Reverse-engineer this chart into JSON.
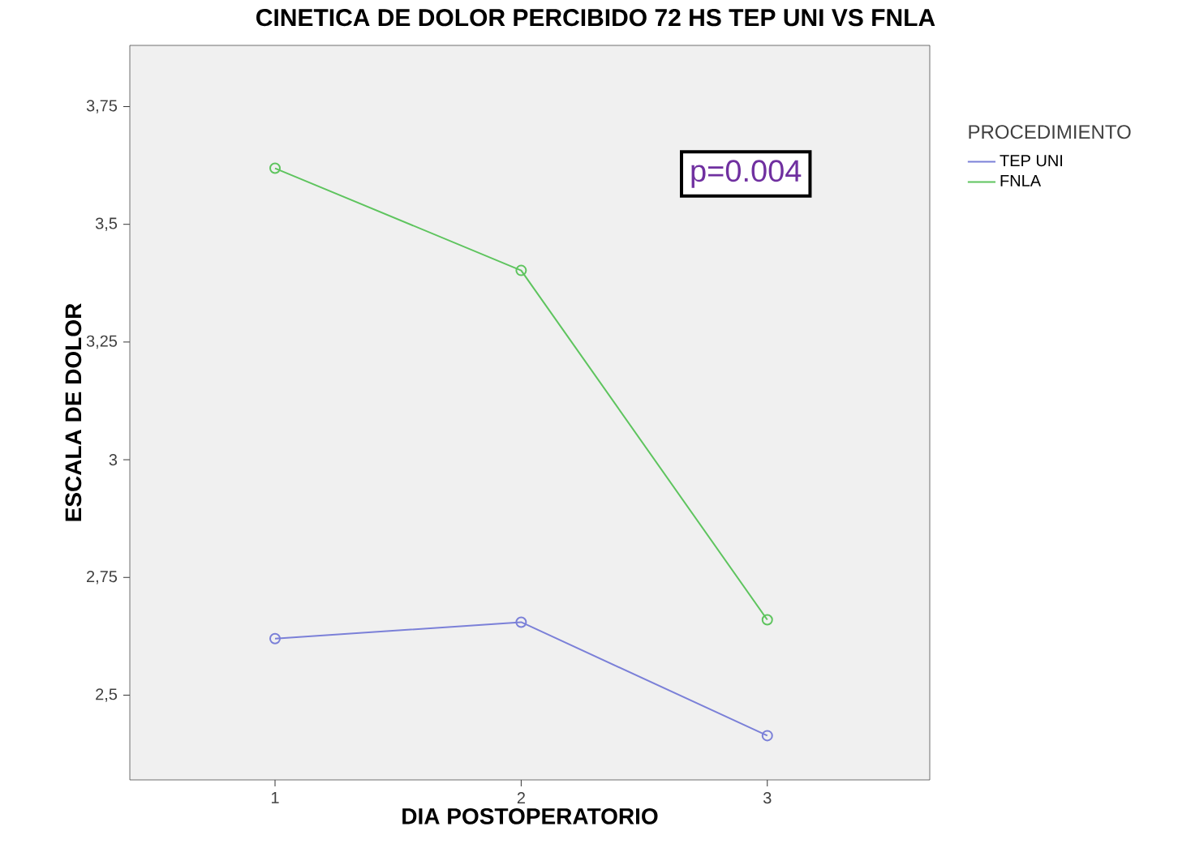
{
  "chart_data": {
    "type": "line",
    "title": "CINETICA DE DOLOR PERCIBIDO 72 HS TEP UNI VS FNLA",
    "xlabel": "DIA POSTOPERATORIO",
    "ylabel": "ESCALA DE DOLOR",
    "legend_title": "PROCEDIMIENTO",
    "categories": [
      "1",
      "2",
      "3"
    ],
    "series": [
      {
        "name": "TEP UNI",
        "color": "#7b80d8",
        "values": [
          2.62,
          2.655,
          2.414
        ]
      },
      {
        "name": "FNLA",
        "color": "#5ec45e",
        "values": [
          3.619,
          3.402,
          2.66
        ]
      }
    ],
    "ylim": [
      2.32,
      3.88
    ],
    "yticks": [
      {
        "value": 2.5,
        "label": "2,5"
      },
      {
        "value": 2.75,
        "label": "2,75"
      },
      3,
      {
        "value": 3.25,
        "label": "3,25"
      },
      {
        "value": 3.5,
        "label": "3,5"
      },
      {
        "value": 3.75,
        "label": "3,75"
      }
    ],
    "annotations": [
      "p=0.004"
    ],
    "marker": "circle",
    "line_style": "solid",
    "legend": "right",
    "grid": false
  }
}
